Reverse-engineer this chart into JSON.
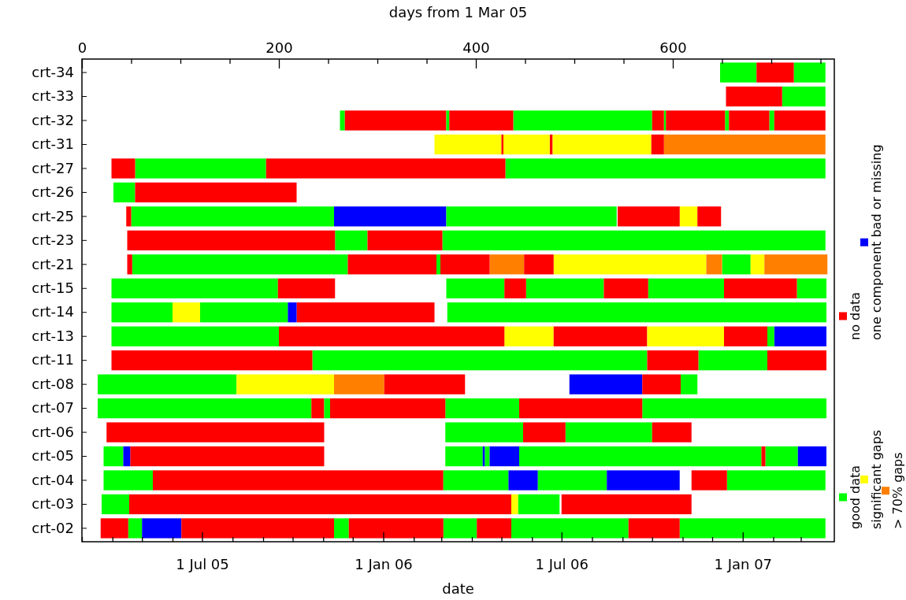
{
  "chart_data": {
    "type": "bar",
    "orientation": "horizontal",
    "xlabel": "days from 1 Mar 05",
    "x2label": "date",
    "legend": "right",
    "grid": false,
    "categories": [
      "crt-34",
      "crt-33",
      "crt-32",
      "crt-31",
      "crt-27",
      "crt-26",
      "crt-25",
      "crt-23",
      "crt-21",
      "crt-15",
      "crt-14",
      "crt-13",
      "crt-11",
      "crt-08",
      "crt-07",
      "crt-06",
      "crt-05",
      "crt-04",
      "crt-03",
      "crt-02"
    ],
    "x2lim": [
      "2005-03-01",
      "2007-04-04"
    ],
    "x2ticks": [
      {
        "value": "2005-03-01",
        "label": null
      },
      {
        "value": "2005-04-01",
        "label": null
      },
      {
        "value": "2005-05-01",
        "label": null
      },
      {
        "value": "2005-06-01",
        "label": null
      },
      {
        "value": "2005-07-01",
        "label": "1 Jul 05"
      },
      {
        "value": "2005-08-01",
        "label": null
      },
      {
        "value": "2005-09-01",
        "label": null
      },
      {
        "value": "2005-10-01",
        "label": null
      },
      {
        "value": "2005-11-01",
        "label": null
      },
      {
        "value": "2005-12-01",
        "label": null
      },
      {
        "value": "2006-01-01",
        "label": "1 Jan 06"
      },
      {
        "value": "2006-02-01",
        "label": null
      },
      {
        "value": "2006-03-01",
        "label": null
      },
      {
        "value": "2006-04-01",
        "label": null
      },
      {
        "value": "2006-05-01",
        "label": null
      },
      {
        "value": "2006-06-01",
        "label": null
      },
      {
        "value": "2006-07-01",
        "label": "1 Jul 06"
      },
      {
        "value": "2006-08-01",
        "label": null
      },
      {
        "value": "2006-09-01",
        "label": null
      },
      {
        "value": "2006-10-01",
        "label": null
      },
      {
        "value": "2006-11-01",
        "label": null
      },
      {
        "value": "2006-12-01",
        "label": null
      },
      {
        "value": "2007-01-01",
        "label": "1 Jan 07"
      },
      {
        "value": "2007-02-01",
        "label": null
      },
      {
        "value": "2007-03-01",
        "label": null
      }
    ],
    "xlim": [
      0,
      764
    ],
    "xticks": [
      0,
      {
        "value": 50,
        "label": null
      },
      {
        "value": 100,
        "label": null
      },
      {
        "value": 150,
        "label": null
      },
      200,
      {
        "value": 250,
        "label": null
      },
      {
        "value": 300,
        "label": null
      },
      {
        "value": 350,
        "label": null
      },
      400,
      {
        "value": 450,
        "label": null
      },
      {
        "value": 500,
        "label": null
      },
      {
        "value": 550,
        "label": null
      },
      600,
      {
        "value": 650,
        "label": null
      },
      {
        "value": 700,
        "label": null
      },
      {
        "value": 750,
        "label": null
      }
    ],
    "series": [
      {
        "name": "good data",
        "color": "#00ff00",
        "base": [
          648,
          711,
          262,
          null,
          54,
          32,
          50,
          257,
          51,
          30,
          30,
          30,
          234,
          16,
          16,
          369,
          22,
          22,
          20,
          47
        ],
        "values": [
          37,
          44,
          5,
          null,
          133,
          22,
          206,
          33,
          219,
          169,
          62,
          170,
          340,
          141,
          217,
          79,
          20,
          50,
          28,
          14
        ]
      },
      {
        "name": "significant gaps",
        "color": "#ffff00",
        "base": [
          null,
          null,
          null,
          358,
          null,
          null,
          607,
          null,
          479,
          null,
          92,
          429,
          null,
          157,
          null,
          null,
          null,
          null,
          436,
          null
        ],
        "values": [
          null,
          null,
          null,
          68,
          null,
          null,
          18,
          null,
          155,
          null,
          28,
          50,
          null,
          99,
          null,
          null,
          null,
          null,
          7,
          null
        ]
      },
      {
        "name": "> 70% gaps",
        "color": "#ff8000",
        "base": [
          null,
          null,
          null,
          591,
          null,
          null,
          null,
          null,
          414,
          null,
          null,
          null,
          null,
          256,
          null,
          null,
          null,
          null,
          null,
          null
        ],
        "values": [
          null,
          null,
          null,
          164,
          null,
          null,
          null,
          null,
          35,
          null,
          null,
          null,
          null,
          51,
          null,
          null,
          null,
          null,
          null,
          null
        ]
      },
      {
        "name": "no data",
        "color": "#ff0000",
        "base": [
          685,
          654,
          267,
          426,
          30,
          54,
          45,
          46,
          46,
          199,
          218,
          200,
          30,
          307,
          233,
          25,
          49,
          72,
          48,
          19
        ],
        "values": [
          38,
          57,
          103,
          2,
          24,
          164,
          5,
          211,
          5,
          58,
          140,
          229,
          204,
          82,
          13,
          221,
          197,
          295,
          388,
          28
        ]
      },
      {
        "name": "one component bad or missing",
        "color": "#0000ff",
        "base": [
          null,
          null,
          null,
          null,
          null,
          null,
          256,
          null,
          null,
          null,
          209,
          703,
          null,
          495,
          null,
          null,
          42,
          433,
          null,
          61
        ],
        "values": [
          null,
          null,
          null,
          null,
          null,
          null,
          114,
          null,
          null,
          null,
          9,
          53,
          null,
          74,
          null,
          null,
          7,
          30,
          null,
          40
        ]
      },
      {
        "color": "#00ff00",
        "base": [
          723,
          null,
          370,
          null,
          430,
          null,
          370,
          366,
          360,
          370,
          120,
          696,
          626,
          608,
          246,
          491,
          369,
          367,
          443,
          256
        ],
        "values": [
          32,
          null,
          3,
          null,
          325,
          null,
          173,
          389,
          4,
          59,
          89,
          7,
          70,
          17,
          6,
          88,
          38,
          66,
          42,
          15
        ]
      },
      {
        "color": "#00ff00",
        "base": [
          null,
          null,
          438,
          null,
          null,
          null,
          null,
          null,
          650,
          451,
          371,
          null,
          null,
          null,
          369,
          null,
          409,
          463,
          null,
          367
        ],
        "values": [
          null,
          null,
          141,
          null,
          null,
          null,
          null,
          null,
          29,
          79,
          385,
          null,
          null,
          null,
          75,
          null,
          5,
          70,
          null,
          34
        ]
      },
      {
        "color": "#00ff00",
        "base": [
          null,
          null,
          591,
          null,
          null,
          null,
          null,
          null,
          null,
          575,
          null,
          null,
          null,
          null,
          569,
          null,
          444,
          655,
          null,
          436
        ],
        "values": [
          null,
          null,
          2,
          null,
          null,
          null,
          null,
          null,
          null,
          77,
          null,
          null,
          null,
          null,
          187,
          null,
          246,
          100,
          null,
          119
        ]
      },
      {
        "color": "#00ff00",
        "base": [
          null,
          null,
          653,
          null,
          null,
          null,
          null,
          null,
          null,
          726,
          null,
          null,
          null,
          null,
          null,
          null,
          694,
          null,
          null,
          607
        ],
        "values": [
          null,
          null,
          4,
          null,
          null,
          null,
          null,
          null,
          null,
          30,
          null,
          null,
          null,
          null,
          null,
          null,
          33,
          null,
          null,
          148
        ]
      },
      {
        "color": "#00ff00",
        "base": [
          null,
          null,
          698,
          null,
          null,
          null,
          null,
          null,
          null,
          null,
          null,
          null,
          null,
          null,
          null,
          null,
          null,
          null,
          null,
          null
        ],
        "values": [
          null,
          null,
          5,
          null,
          null,
          null,
          null,
          null,
          null,
          null,
          null,
          null,
          null,
          null,
          null,
          null,
          null,
          null,
          null,
          null
        ]
      },
      {
        "color": "#ff0000",
        "base": [
          null,
          null,
          373,
          475,
          187,
          null,
          544,
          290,
          270,
          429,
          null,
          479,
          574,
          569,
          252,
          448,
          690,
          619,
          487,
          101
        ],
        "values": [
          null,
          null,
          65,
          3,
          243,
          null,
          63,
          76,
          90,
          22,
          null,
          95,
          52,
          39,
          117,
          43,
          4,
          36,
          132,
          155
        ]
      },
      {
        "color": "#ff0000",
        "base": [
          null,
          null,
          579,
          578,
          null,
          null,
          625,
          null,
          364,
          530,
          null,
          652,
          696,
          null,
          444,
          579,
          null,
          null,
          null,
          271
        ],
        "values": [
          null,
          null,
          12,
          13,
          null,
          null,
          24,
          null,
          50,
          45,
          null,
          44,
          60,
          null,
          125,
          40,
          null,
          null,
          null,
          96
        ]
      },
      {
        "color": "#ff0000",
        "base": [
          null,
          null,
          593,
          null,
          null,
          null,
          null,
          null,
          449,
          652,
          null,
          null,
          null,
          null,
          null,
          null,
          null,
          null,
          null,
          401
        ],
        "values": [
          null,
          null,
          60,
          null,
          null,
          null,
          null,
          null,
          30,
          74,
          null,
          null,
          null,
          null,
          null,
          null,
          null,
          null,
          null,
          35
        ]
      },
      {
        "color": "#ff0000",
        "base": [
          null,
          null,
          657,
          null,
          null,
          null,
          null,
          null,
          null,
          null,
          null,
          null,
          null,
          null,
          null,
          null,
          null,
          null,
          null,
          555
        ],
        "values": [
          null,
          null,
          41,
          null,
          null,
          null,
          null,
          null,
          null,
          null,
          null,
          null,
          null,
          null,
          null,
          null,
          null,
          null,
          null,
          52
        ]
      },
      {
        "color": "#ff0000",
        "base": [
          null,
          null,
          703,
          null,
          null,
          null,
          null,
          null,
          null,
          null,
          null,
          null,
          null,
          null,
          null,
          null,
          null,
          null,
          null,
          null
        ],
        "values": [
          null,
          null,
          52,
          null,
          null,
          null,
          null,
          null,
          null,
          null,
          null,
          null,
          null,
          null,
          null,
          null,
          null,
          null,
          null,
          null
        ]
      },
      {
        "color": "#ffff00",
        "base": [
          null,
          null,
          null,
          428,
          null,
          null,
          null,
          null,
          679,
          null,
          null,
          574,
          null,
          null,
          null,
          null,
          null,
          null,
          null,
          null
        ],
        "values": [
          null,
          null,
          null,
          47,
          null,
          null,
          null,
          null,
          14,
          null,
          null,
          78,
          null,
          null,
          null,
          null,
          null,
          null,
          null,
          null
        ]
      },
      {
        "color": "#ffff00",
        "base": [
          null,
          null,
          null,
          478,
          null,
          null,
          null,
          null,
          null,
          null,
          null,
          null,
          null,
          null,
          null,
          null,
          null,
          null,
          null,
          null
        ],
        "values": [
          null,
          null,
          null,
          100,
          null,
          null,
          null,
          null,
          null,
          null,
          null,
          null,
          null,
          null,
          null,
          null,
          null,
          null,
          null,
          null
        ]
      },
      {
        "color": "#ff8000",
        "base": [
          null,
          null,
          null,
          null,
          null,
          null,
          null,
          null,
          634,
          null,
          null,
          null,
          null,
          null,
          null,
          null,
          null,
          null,
          null,
          null
        ],
        "values": [
          null,
          null,
          null,
          null,
          null,
          null,
          null,
          null,
          16,
          null,
          null,
          null,
          null,
          null,
          null,
          null,
          null,
          null,
          null,
          null
        ]
      },
      {
        "color": "#ff8000",
        "base": [
          null,
          null,
          null,
          null,
          null,
          null,
          null,
          null,
          693,
          null,
          null,
          null,
          null,
          null,
          null,
          null,
          null,
          null,
          null,
          null
        ],
        "values": [
          null,
          null,
          null,
          null,
          null,
          null,
          null,
          null,
          64,
          null,
          null,
          null,
          null,
          null,
          null,
          null,
          null,
          null,
          null,
          null
        ]
      },
      {
        "color": "#0000ff",
        "base": [
          null,
          null,
          null,
          null,
          null,
          null,
          null,
          null,
          null,
          null,
          null,
          null,
          null,
          null,
          null,
          null,
          407,
          533,
          null,
          null
        ],
        "values": [
          null,
          null,
          null,
          null,
          null,
          null,
          null,
          null,
          null,
          null,
          null,
          null,
          null,
          null,
          null,
          null,
          2,
          74,
          null,
          null
        ]
      },
      {
        "color": "#0000ff",
        "base": [
          null,
          null,
          null,
          null,
          null,
          null,
          null,
          null,
          null,
          null,
          null,
          null,
          null,
          null,
          null,
          null,
          414,
          null,
          null,
          null
        ],
        "values": [
          null,
          null,
          null,
          null,
          null,
          null,
          null,
          null,
          null,
          null,
          null,
          null,
          null,
          null,
          null,
          null,
          30,
          null,
          null,
          null
        ]
      },
      {
        "color": "#0000ff",
        "base": [
          null,
          null,
          null,
          null,
          null,
          null,
          null,
          null,
          null,
          null,
          null,
          null,
          null,
          null,
          null,
          null,
          727,
          null,
          null,
          null
        ],
        "values": [
          null,
          null,
          null,
          null,
          null,
          null,
          null,
          null,
          null,
          null,
          null,
          null,
          null,
          null,
          null,
          null,
          29,
          null,
          null,
          null
        ]
      }
    ]
  }
}
